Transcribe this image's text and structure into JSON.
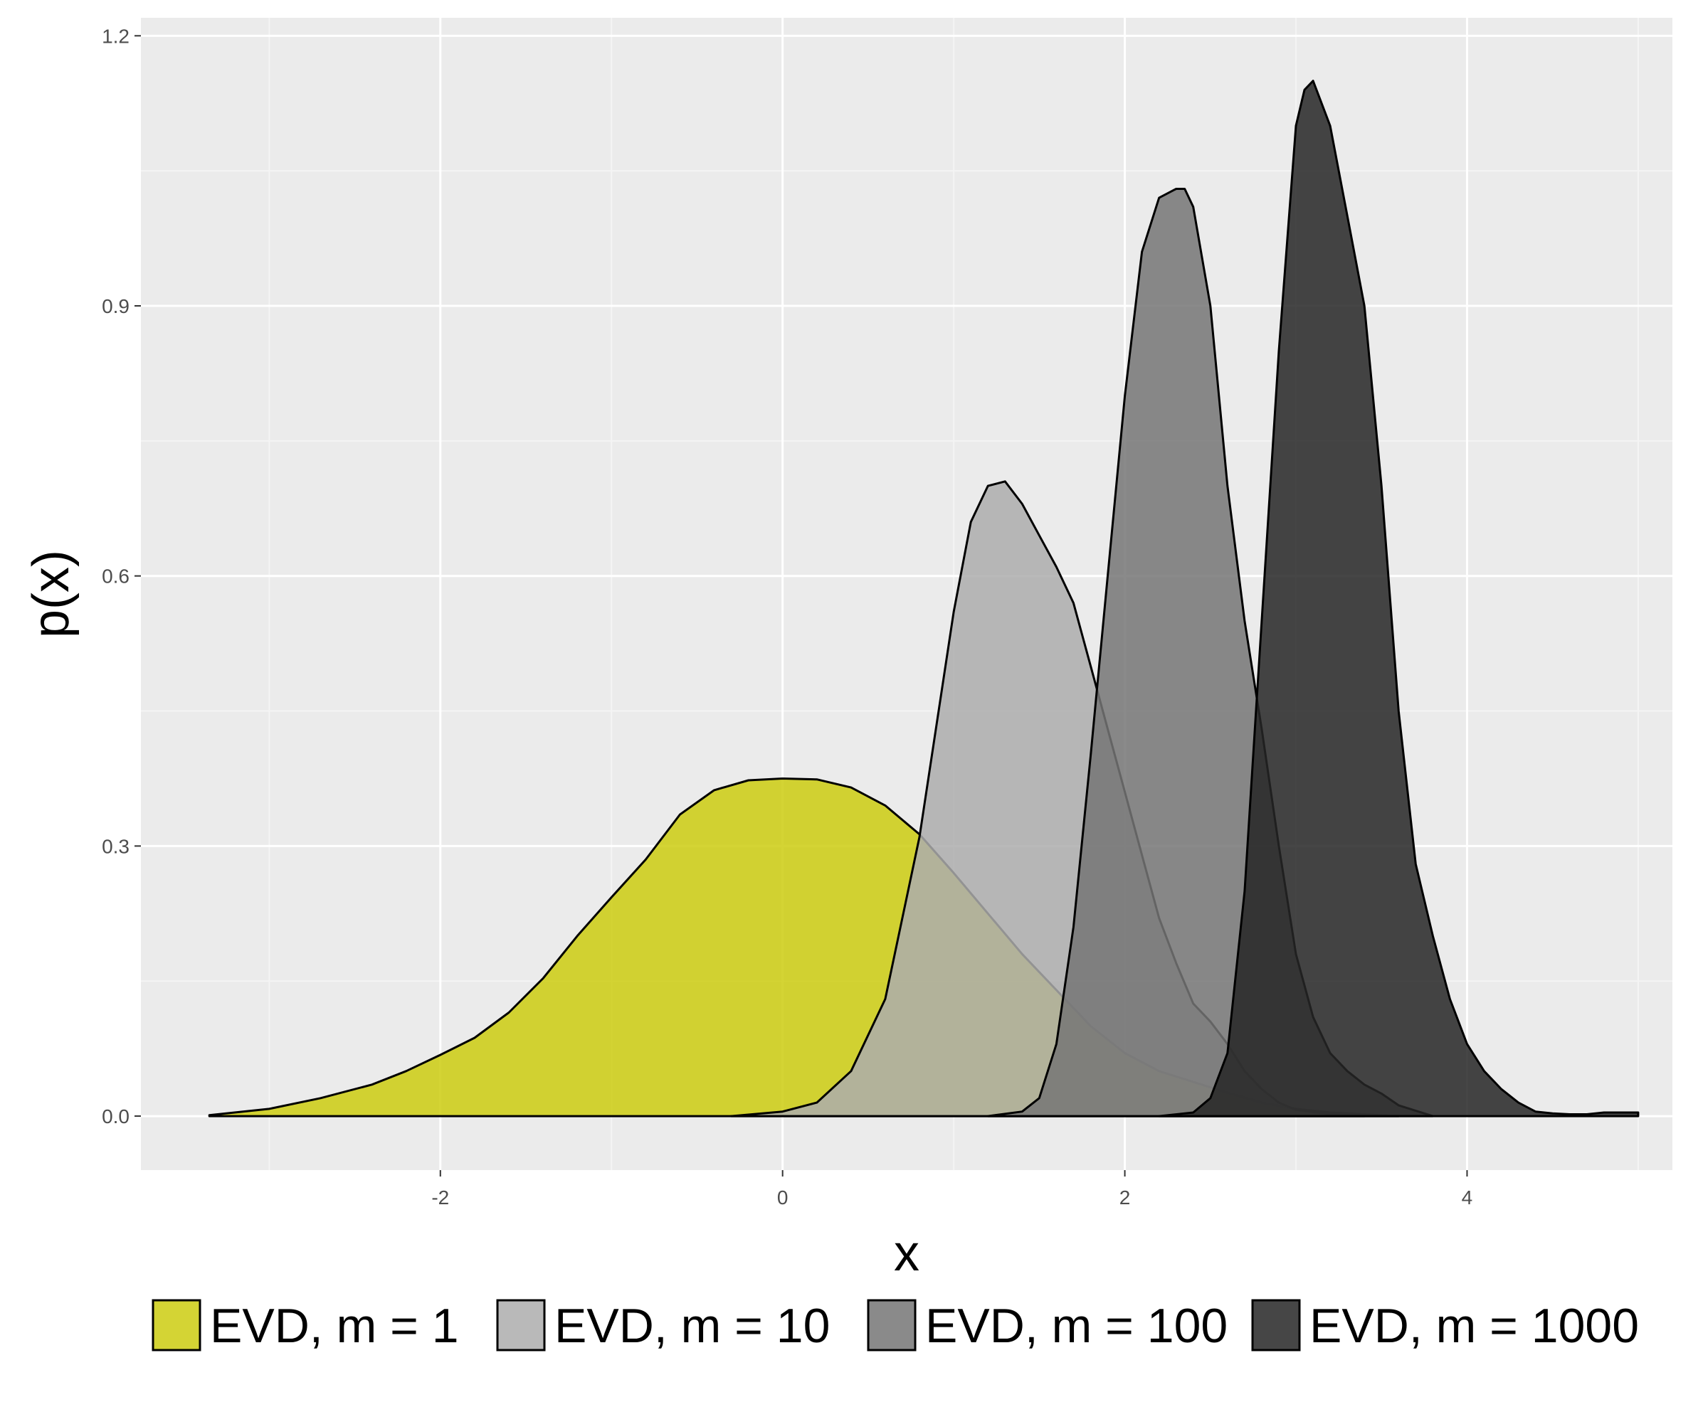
{
  "chart_data": {
    "type": "area",
    "title": "",
    "xlabel": "x",
    "ylabel": "p(x)",
    "xlim": [
      -3.75,
      5.2
    ],
    "ylim": [
      -0.06,
      1.22
    ],
    "x_ticks": [
      -2,
      0,
      2,
      4
    ],
    "x_tick_labels": [
      "-2",
      "0",
      "2",
      "4"
    ],
    "y_ticks": [
      0.0,
      0.3,
      0.6,
      0.9,
      1.2
    ],
    "y_tick_labels": [
      "0.0",
      "0.3",
      "0.6",
      "0.9",
      "1.2"
    ],
    "grid": true,
    "legend_position": "bottom",
    "colors": {
      "panel": "#EBEBEB",
      "grid_major": "#FFFFFF",
      "grid_minor": "#F4F4F4",
      "outline": "#000000"
    },
    "series": [
      {
        "name": "EVD, m = 1",
        "color": "#CCCC11",
        "x": [
          -3.35,
          -3.0,
          -2.7,
          -2.4,
          -2.2,
          -2.0,
          -1.8,
          -1.6,
          -1.4,
          -1.2,
          -1.0,
          -0.8,
          -0.6,
          -0.4,
          -0.2,
          0.0,
          0.2,
          0.4,
          0.6,
          0.8,
          1.0,
          1.2,
          1.4,
          1.6,
          1.8,
          2.0,
          2.2,
          2.4,
          2.6,
          2.8,
          3.0,
          3.2,
          3.4,
          3.6
        ],
        "y": [
          0.001,
          0.008,
          0.02,
          0.035,
          0.05,
          0.068,
          0.087,
          0.115,
          0.153,
          0.2,
          0.243,
          0.285,
          0.335,
          0.362,
          0.373,
          0.375,
          0.374,
          0.365,
          0.345,
          0.313,
          0.27,
          0.225,
          0.18,
          0.14,
          0.1,
          0.07,
          0.05,
          0.038,
          0.026,
          0.015,
          0.008,
          0.004,
          0.002,
          0.0
        ]
      },
      {
        "name": "EVD, m = 10",
        "color": "#ADADAD",
        "x": [
          -0.3,
          0.0,
          0.2,
          0.4,
          0.6,
          0.8,
          1.0,
          1.1,
          1.2,
          1.3,
          1.4,
          1.5,
          1.6,
          1.7,
          1.8,
          1.9,
          2.0,
          2.1,
          2.2,
          2.3,
          2.4,
          2.5,
          2.6,
          2.7,
          2.8,
          2.9,
          3.0,
          3.2,
          3.4
        ],
        "y": [
          0.0,
          0.005,
          0.015,
          0.05,
          0.13,
          0.31,
          0.56,
          0.66,
          0.7,
          0.705,
          0.68,
          0.645,
          0.61,
          0.57,
          0.5,
          0.43,
          0.36,
          0.29,
          0.22,
          0.17,
          0.125,
          0.105,
          0.08,
          0.05,
          0.03,
          0.015,
          0.007,
          0.002,
          0.0
        ]
      },
      {
        "name": "EVD, m = 100",
        "color": "#767676",
        "x": [
          1.2,
          1.4,
          1.5,
          1.6,
          1.7,
          1.8,
          1.9,
          2.0,
          2.1,
          2.2,
          2.3,
          2.35,
          2.4,
          2.5,
          2.6,
          2.7,
          2.8,
          2.9,
          3.0,
          3.1,
          3.2,
          3.3,
          3.4,
          3.5,
          3.6,
          3.8
        ],
        "y": [
          0.0,
          0.005,
          0.02,
          0.08,
          0.21,
          0.4,
          0.6,
          0.8,
          0.96,
          1.02,
          1.03,
          1.03,
          1.01,
          0.9,
          0.7,
          0.55,
          0.43,
          0.3,
          0.18,
          0.11,
          0.07,
          0.05,
          0.035,
          0.025,
          0.012,
          0.0
        ]
      },
      {
        "name": "EVD, m = 1000",
        "color": "#262626",
        "x": [
          2.2,
          2.4,
          2.5,
          2.6,
          2.7,
          2.8,
          2.9,
          3.0,
          3.05,
          3.1,
          3.2,
          3.3,
          3.4,
          3.5,
          3.6,
          3.7,
          3.8,
          3.9,
          4.0,
          4.1,
          4.2,
          4.3,
          4.4,
          4.5,
          4.6,
          4.7,
          4.8,
          4.9,
          5.0
        ],
        "y": [
          0.0,
          0.004,
          0.02,
          0.07,
          0.25,
          0.55,
          0.85,
          1.1,
          1.14,
          1.15,
          1.1,
          1.0,
          0.9,
          0.7,
          0.45,
          0.28,
          0.2,
          0.13,
          0.08,
          0.05,
          0.03,
          0.015,
          0.005,
          0.003,
          0.002,
          0.002,
          0.004,
          0.004,
          0.004
        ]
      }
    ]
  }
}
